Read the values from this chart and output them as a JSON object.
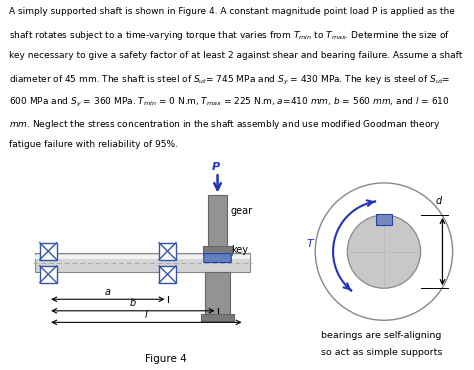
{
  "shaft_color": "#d4d4d4",
  "shaft_highlight": "#f2f2f2",
  "gear_color": "#939393",
  "gear_dark": "#7a7a7a",
  "key_color": "#6080c0",
  "bearing_color": "#3355aa",
  "arrow_color": "#2233bb",
  "bg": "#ffffff",
  "text_color": "#000000",
  "lines": [
    "A simply supported shaft is shown in Figure 4. A constant magnitude point load P is applied as the",
    "shaft rotates subject to a time-varying torque that varies from $T_{min}$ to $T_{max}$. Determine the size of",
    "key necessary to give a safety factor of at least 2 against shear and bearing failure. Assume a shaft",
    "diameter of 45 mm. The shaft is steel of $S_{ut}$= 745 MPa and $S_y$ = 430 MPa. The key is steel of $S_{ut}$=",
    "600 MPa and $S_y$ = 360 MPa. $T_{min}$ = 0 N.m, $T_{max}$ = 225 N.m, $a$=410 $mm$, $b$ = 560 $mm$, and $l$ = 610",
    "$mm$. Neglect the stress concentration in the shaft assembly and use modified Goodman theory",
    "fatigue failure with reliability of 95%."
  ],
  "figure_label": "Figure 4",
  "caption1": "bearings are self-aligning",
  "caption2": "so act as simple supports"
}
